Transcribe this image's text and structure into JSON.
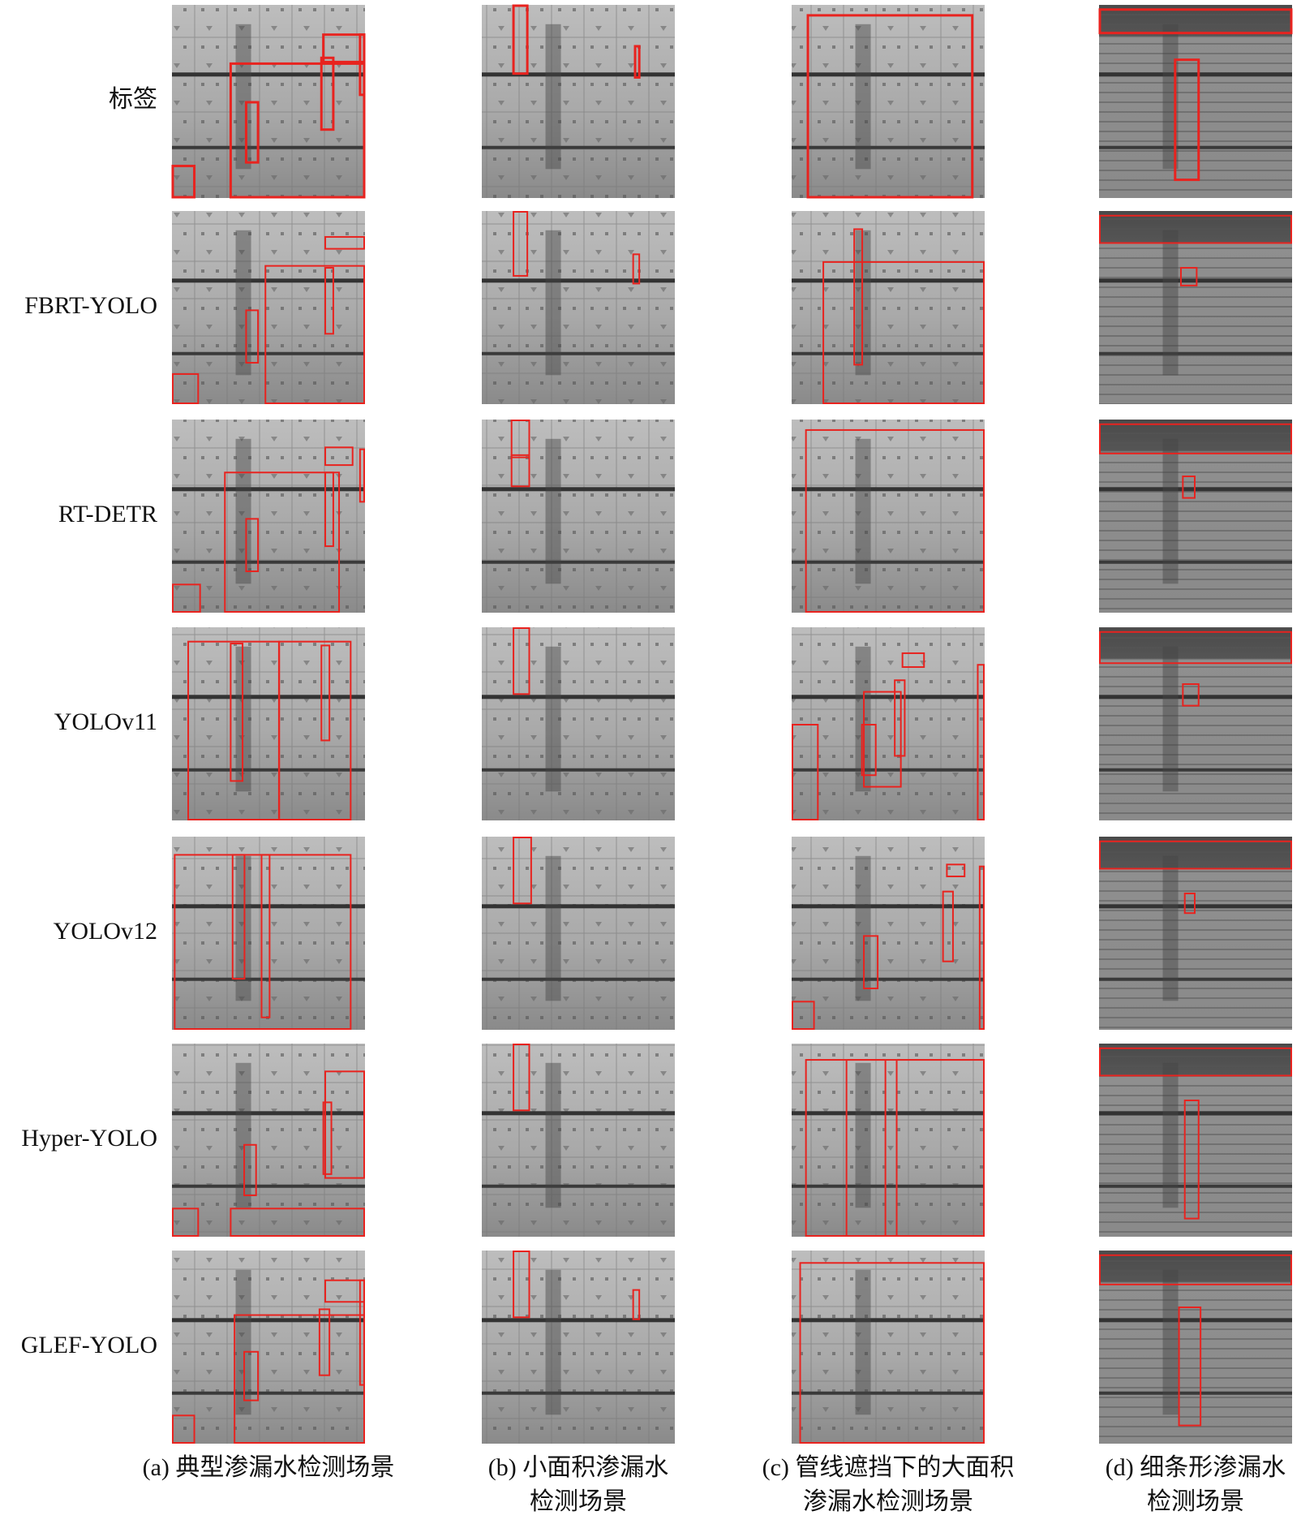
{
  "rows": [
    "标签",
    "FBRT-YOLO",
    "RT-DETR",
    "YOLOv11",
    "YOLOv12",
    "Hyper-YOLO",
    "GLEF-YOLO"
  ],
  "captions": [
    [
      "(a) 典型渗漏水检测场景"
    ],
    [
      "(b) 小面积渗漏水",
      "检测场景"
    ],
    [
      "(c) 管线遮挡下的大面积",
      "渗漏水检测场景"
    ],
    [
      "(d) 细条形渗漏水",
      "检测场景"
    ]
  ]
}
